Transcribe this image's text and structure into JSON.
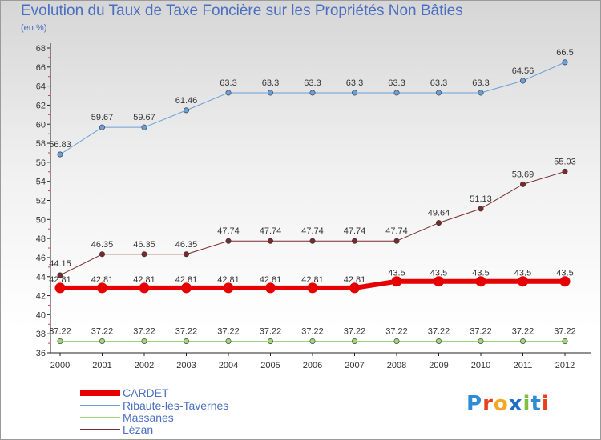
{
  "title": "Evolution du Taux de Taxe Foncière sur les Propriétés Non Bâties",
  "subtitle": "(en %)",
  "logo": {
    "text": "Proxiti",
    "letters": [
      "P",
      "r",
      "o",
      "x",
      "i",
      "t",
      "i"
    ],
    "colors": [
      "#2e8bd6",
      "#e8401c",
      "#f5a623",
      "#1c6fc2",
      "#7fbf3f",
      "#2e8bd6",
      "#e8401c"
    ]
  },
  "chart_data": {
    "type": "line",
    "title": "Evolution du Taux de Taxe Foncière sur les Propriétés Non Bâties",
    "xlabel": "",
    "ylabel": "(en %)",
    "x": [
      "2000",
      "2001",
      "2002",
      "2003",
      "2004",
      "2005",
      "2006",
      "2007",
      "2008",
      "2009",
      "2010",
      "2011",
      "2012"
    ],
    "ylim": [
      36,
      68
    ],
    "yticks": [
      36,
      38,
      40,
      42,
      44,
      46,
      48,
      50,
      52,
      54,
      56,
      58,
      60,
      62,
      64,
      66,
      68
    ],
    "grid": false,
    "legend_position": "bottom-left",
    "series": [
      {
        "name": "CARDET",
        "color": "#e60000",
        "width": 6,
        "values": [
          42.81,
          42.81,
          42.81,
          42.81,
          42.81,
          42.81,
          42.81,
          42.81,
          43.5,
          43.5,
          43.5,
          43.5,
          43.5
        ],
        "labels": [
          "42.81",
          "42.81",
          "42.81",
          "42.81",
          "42.81",
          "42.81",
          "42.81",
          "42.81",
          "43.5",
          "43.5",
          "43.5",
          "43.5",
          "43.5"
        ]
      },
      {
        "name": "Ribaute-les-Tavernes",
        "color": "#6a9fd8",
        "width": 1,
        "values": [
          56.83,
          59.67,
          59.67,
          61.46,
          63.3,
          63.3,
          63.3,
          63.3,
          63.3,
          63.3,
          63.3,
          64.56,
          66.5
        ],
        "labels": [
          "56.83",
          "59.67",
          "59.67",
          "61.46",
          "63.3",
          "63.3",
          "63.3",
          "63.3",
          "63.3",
          "63.3",
          "63.3",
          "64.56",
          "66.5"
        ]
      },
      {
        "name": "Massanes",
        "color": "#9fd67a",
        "width": 1,
        "values": [
          37.22,
          37.22,
          37.22,
          37.22,
          37.22,
          37.22,
          37.22,
          37.22,
          37.22,
          37.22,
          37.22,
          37.22,
          37.22
        ],
        "labels": [
          "37.22",
          "37.22",
          "37.22",
          "37.22",
          "37.22",
          "37.22",
          "37.22",
          "37.22",
          "37.22",
          "37.22",
          "37.22",
          "37.22",
          "37.22"
        ]
      },
      {
        "name": "Lézan",
        "color": "#7a2a2a",
        "width": 1,
        "values": [
          44.15,
          46.35,
          46.35,
          46.35,
          47.74,
          47.74,
          47.74,
          47.74,
          47.74,
          49.64,
          51.13,
          53.69,
          55.03
        ],
        "labels": [
          "44.15",
          "46.35",
          "46.35",
          "46.35",
          "47.74",
          "47.74",
          "47.74",
          "47.74",
          "47.74",
          "49.64",
          "51.13",
          "53.69",
          "55.03"
        ]
      }
    ]
  }
}
